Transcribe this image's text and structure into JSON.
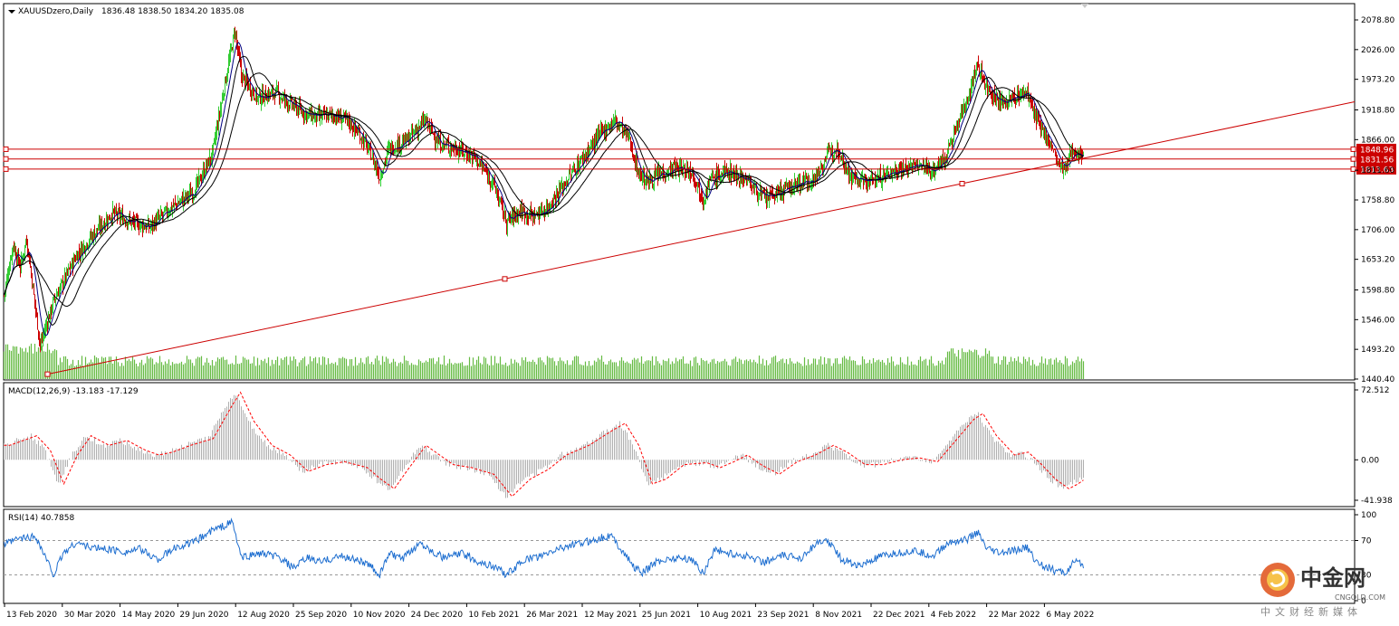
{
  "chart_data": [
    {
      "type": "candlestick",
      "name": "price",
      "title": "XAUUSDzero,Daily",
      "ohlc": "1836.48 1838.50 1834.20 1835.08",
      "ylim": [
        1440.4,
        2078.8
      ],
      "y_ticks": [
        "2078.80",
        "2026.00",
        "1973.20",
        "1918.80",
        "1866.00",
        "1811.60",
        "1758.80",
        "1706.00",
        "1653.20",
        "1598.80",
        "1546.00",
        "1493.20",
        "1440.40"
      ],
      "x_ticks": [
        "13 Feb 2020",
        "30 Mar 2020",
        "14 May 2020",
        "29 Jun 2020",
        "12 Aug 2020",
        "25 Sep 2020",
        "10 Nov 2020",
        "24 Dec 2020",
        "10 Feb 2021",
        "26 Mar 2021",
        "12 May 2021",
        "25 Jun 2021",
        "10 Aug 2021",
        "23 Sep 2021",
        "8 Nov 2021",
        "22 Dec 2021",
        "4 Feb 2022",
        "22 Mar 2022",
        "6 May 2022"
      ],
      "key_path": [
        [
          0,
          1590
        ],
        [
          10,
          1680
        ],
        [
          18,
          1640
        ],
        [
          25,
          1690
        ],
        [
          40,
          1500
        ],
        [
          55,
          1580
        ],
        [
          80,
          1660
        ],
        [
          100,
          1700
        ],
        [
          120,
          1735
        ],
        [
          140,
          1720
        ],
        [
          160,
          1710
        ],
        [
          185,
          1745
        ],
        [
          210,
          1775
        ],
        [
          230,
          1840
        ],
        [
          245,
          1975
        ],
        [
          255,
          2060
        ],
        [
          262,
          1980
        ],
        [
          280,
          1940
        ],
        [
          300,
          1950
        ],
        [
          315,
          1930
        ],
        [
          330,
          1915
        ],
        [
          345,
          1905
        ],
        [
          360,
          1910
        ],
        [
          380,
          1900
        ],
        [
          395,
          1870
        ],
        [
          405,
          1840
        ],
        [
          415,
          1800
        ],
        [
          425,
          1850
        ],
        [
          445,
          1865
        ],
        [
          465,
          1900
        ],
        [
          480,
          1860
        ],
        [
          500,
          1850
        ],
        [
          520,
          1835
        ],
        [
          540,
          1790
        ],
        [
          555,
          1720
        ],
        [
          570,
          1740
        ],
        [
          585,
          1730
        ],
        [
          600,
          1745
        ],
        [
          620,
          1790
        ],
        [
          640,
          1835
        ],
        [
          660,
          1880
        ],
        [
          675,
          1900
        ],
        [
          690,
          1870
        ],
        [
          700,
          1810
        ],
        [
          710,
          1790
        ],
        [
          725,
          1805
        ],
        [
          740,
          1815
        ],
        [
          760,
          1810
        ],
        [
          772,
          1760
        ],
        [
          780,
          1795
        ],
        [
          800,
          1810
        ],
        [
          820,
          1795
        ],
        [
          840,
          1760
        ],
        [
          860,
          1775
        ],
        [
          880,
          1790
        ],
        [
          895,
          1795
        ],
        [
          910,
          1840
        ],
        [
          920,
          1855
        ],
        [
          935,
          1800
        ],
        [
          950,
          1790
        ],
        [
          970,
          1800
        ],
        [
          990,
          1815
        ],
        [
          1010,
          1820
        ],
        [
          1025,
          1810
        ],
        [
          1040,
          1835
        ],
        [
          1055,
          1900
        ],
        [
          1068,
          1960
        ],
        [
          1075,
          2000
        ],
        [
          1085,
          1960
        ],
        [
          1100,
          1930
        ],
        [
          1115,
          1940
        ],
        [
          1130,
          1950
        ],
        [
          1140,
          1900
        ],
        [
          1155,
          1860
        ],
        [
          1165,
          1820
        ],
        [
          1172,
          1810
        ],
        [
          1180,
          1850
        ],
        [
          1192,
          1835
        ]
      ],
      "ma_colors": [
        "#000080",
        "#000000",
        "#000000"
      ],
      "horizontal_levels": [
        {
          "value": 1848.96,
          "label": "1848.96"
        },
        {
          "value": 1831.56,
          "label": "1831.56"
        },
        {
          "value": 1813.63,
          "label": "1813.63"
        }
      ],
      "trendline": {
        "color": "#cc0000"
      },
      "colors": {
        "bull": "#33cc33",
        "bear": "#cc0000",
        "volume": "#66bb44",
        "level": "#cc0000"
      }
    },
    {
      "type": "histogram+line",
      "name": "macd",
      "title": "MACD(12,26,9) -13.183 -17.129",
      "ylim": [
        -41.938,
        72.512
      ],
      "y_ticks": [
        "72.512",
        "0.00",
        "-41.938"
      ],
      "key_path": [
        [
          0,
          15
        ],
        [
          30,
          25
        ],
        [
          45,
          10
        ],
        [
          60,
          -25
        ],
        [
          75,
          5
        ],
        [
          90,
          25
        ],
        [
          110,
          15
        ],
        [
          130,
          20
        ],
        [
          150,
          10
        ],
        [
          165,
          5
        ],
        [
          180,
          8
        ],
        [
          200,
          15
        ],
        [
          225,
          22
        ],
        [
          245,
          55
        ],
        [
          255,
          70
        ],
        [
          270,
          40
        ],
        [
          290,
          15
        ],
        [
          310,
          5
        ],
        [
          330,
          -12
        ],
        [
          350,
          -5
        ],
        [
          370,
          -2
        ],
        [
          395,
          -8
        ],
        [
          410,
          -20
        ],
        [
          425,
          -30
        ],
        [
          440,
          -10
        ],
        [
          460,
          15
        ],
        [
          475,
          5
        ],
        [
          490,
          -5
        ],
        [
          510,
          -8
        ],
        [
          535,
          -15
        ],
        [
          555,
          -38
        ],
        [
          575,
          -20
        ],
        [
          595,
          -10
        ],
        [
          615,
          5
        ],
        [
          640,
          15
        ],
        [
          665,
          30
        ],
        [
          680,
          38
        ],
        [
          695,
          15
        ],
        [
          710,
          -25
        ],
        [
          725,
          -20
        ],
        [
          745,
          -5
        ],
        [
          770,
          -3
        ],
        [
          785,
          -8
        ],
        [
          800,
          -2
        ],
        [
          815,
          5
        ],
        [
          830,
          -5
        ],
        [
          850,
          -15
        ],
        [
          870,
          -2
        ],
        [
          890,
          5
        ],
        [
          910,
          15
        ],
        [
          925,
          8
        ],
        [
          945,
          -5
        ],
        [
          965,
          -5
        ],
        [
          985,
          0
        ],
        [
          1005,
          2
        ],
        [
          1025,
          -2
        ],
        [
          1045,
          20
        ],
        [
          1065,
          42
        ],
        [
          1075,
          48
        ],
        [
          1090,
          25
        ],
        [
          1110,
          5
        ],
        [
          1125,
          8
        ],
        [
          1140,
          -5
        ],
        [
          1155,
          -20
        ],
        [
          1170,
          -30
        ],
        [
          1180,
          -25
        ],
        [
          1192,
          -17
        ]
      ],
      "colors": {
        "histogram": "#b0b0b0",
        "signal": "#ff0000"
      }
    },
    {
      "type": "line",
      "name": "rsi",
      "title": "RSI(14) 40.7858",
      "ylim": [
        0,
        100
      ],
      "y_ticks": [
        "100",
        "70",
        "30",
        "0"
      ],
      "levels": [
        70,
        30
      ],
      "key_path": [
        [
          0,
          65
        ],
        [
          15,
          72
        ],
        [
          35,
          75
        ],
        [
          45,
          52
        ],
        [
          55,
          30
        ],
        [
          65,
          55
        ],
        [
          80,
          68
        ],
        [
          95,
          62
        ],
        [
          115,
          60
        ],
        [
          135,
          57
        ],
        [
          150,
          60
        ],
        [
          170,
          48
        ],
        [
          190,
          62
        ],
        [
          210,
          68
        ],
        [
          230,
          82
        ],
        [
          245,
          88
        ],
        [
          252,
          92
        ],
        [
          262,
          50
        ],
        [
          280,
          55
        ],
        [
          300,
          52
        ],
        [
          320,
          38
        ],
        [
          335,
          50
        ],
        [
          350,
          45
        ],
        [
          370,
          52
        ],
        [
          390,
          48
        ],
        [
          405,
          40
        ],
        [
          415,
          30
        ],
        [
          425,
          55
        ],
        [
          440,
          48
        ],
        [
          460,
          68
        ],
        [
          470,
          60
        ],
        [
          485,
          50
        ],
        [
          505,
          55
        ],
        [
          525,
          45
        ],
        [
          545,
          38
        ],
        [
          555,
          30
        ],
        [
          575,
          48
        ],
        [
          595,
          52
        ],
        [
          615,
          62
        ],
        [
          635,
          66
        ],
        [
          655,
          72
        ],
        [
          670,
          76
        ],
        [
          680,
          62
        ],
        [
          695,
          40
        ],
        [
          705,
          32
        ],
        [
          720,
          45
        ],
        [
          740,
          50
        ],
        [
          760,
          48
        ],
        [
          772,
          32
        ],
        [
          785,
          60
        ],
        [
          800,
          55
        ],
        [
          820,
          52
        ],
        [
          840,
          45
        ],
        [
          860,
          52
        ],
        [
          880,
          50
        ],
        [
          895,
          65
        ],
        [
          910,
          70
        ],
        [
          925,
          48
        ],
        [
          945,
          40
        ],
        [
          965,
          50
        ],
        [
          985,
          55
        ],
        [
          1005,
          58
        ],
        [
          1025,
          52
        ],
        [
          1045,
          68
        ],
        [
          1065,
          72
        ],
        [
          1075,
          80
        ],
        [
          1085,
          60
        ],
        [
          1100,
          55
        ],
        [
          1115,
          58
        ],
        [
          1130,
          62
        ],
        [
          1140,
          45
        ],
        [
          1160,
          35
        ],
        [
          1172,
          32
        ],
        [
          1182,
          45
        ],
        [
          1192,
          41
        ]
      ],
      "colors": {
        "line": "#1f6fd0",
        "levels": "#999999"
      }
    }
  ],
  "watermark": {
    "cn": "中金网",
    "en": "CNGOLD.COM",
    "sub": "中文财经新媒体"
  }
}
